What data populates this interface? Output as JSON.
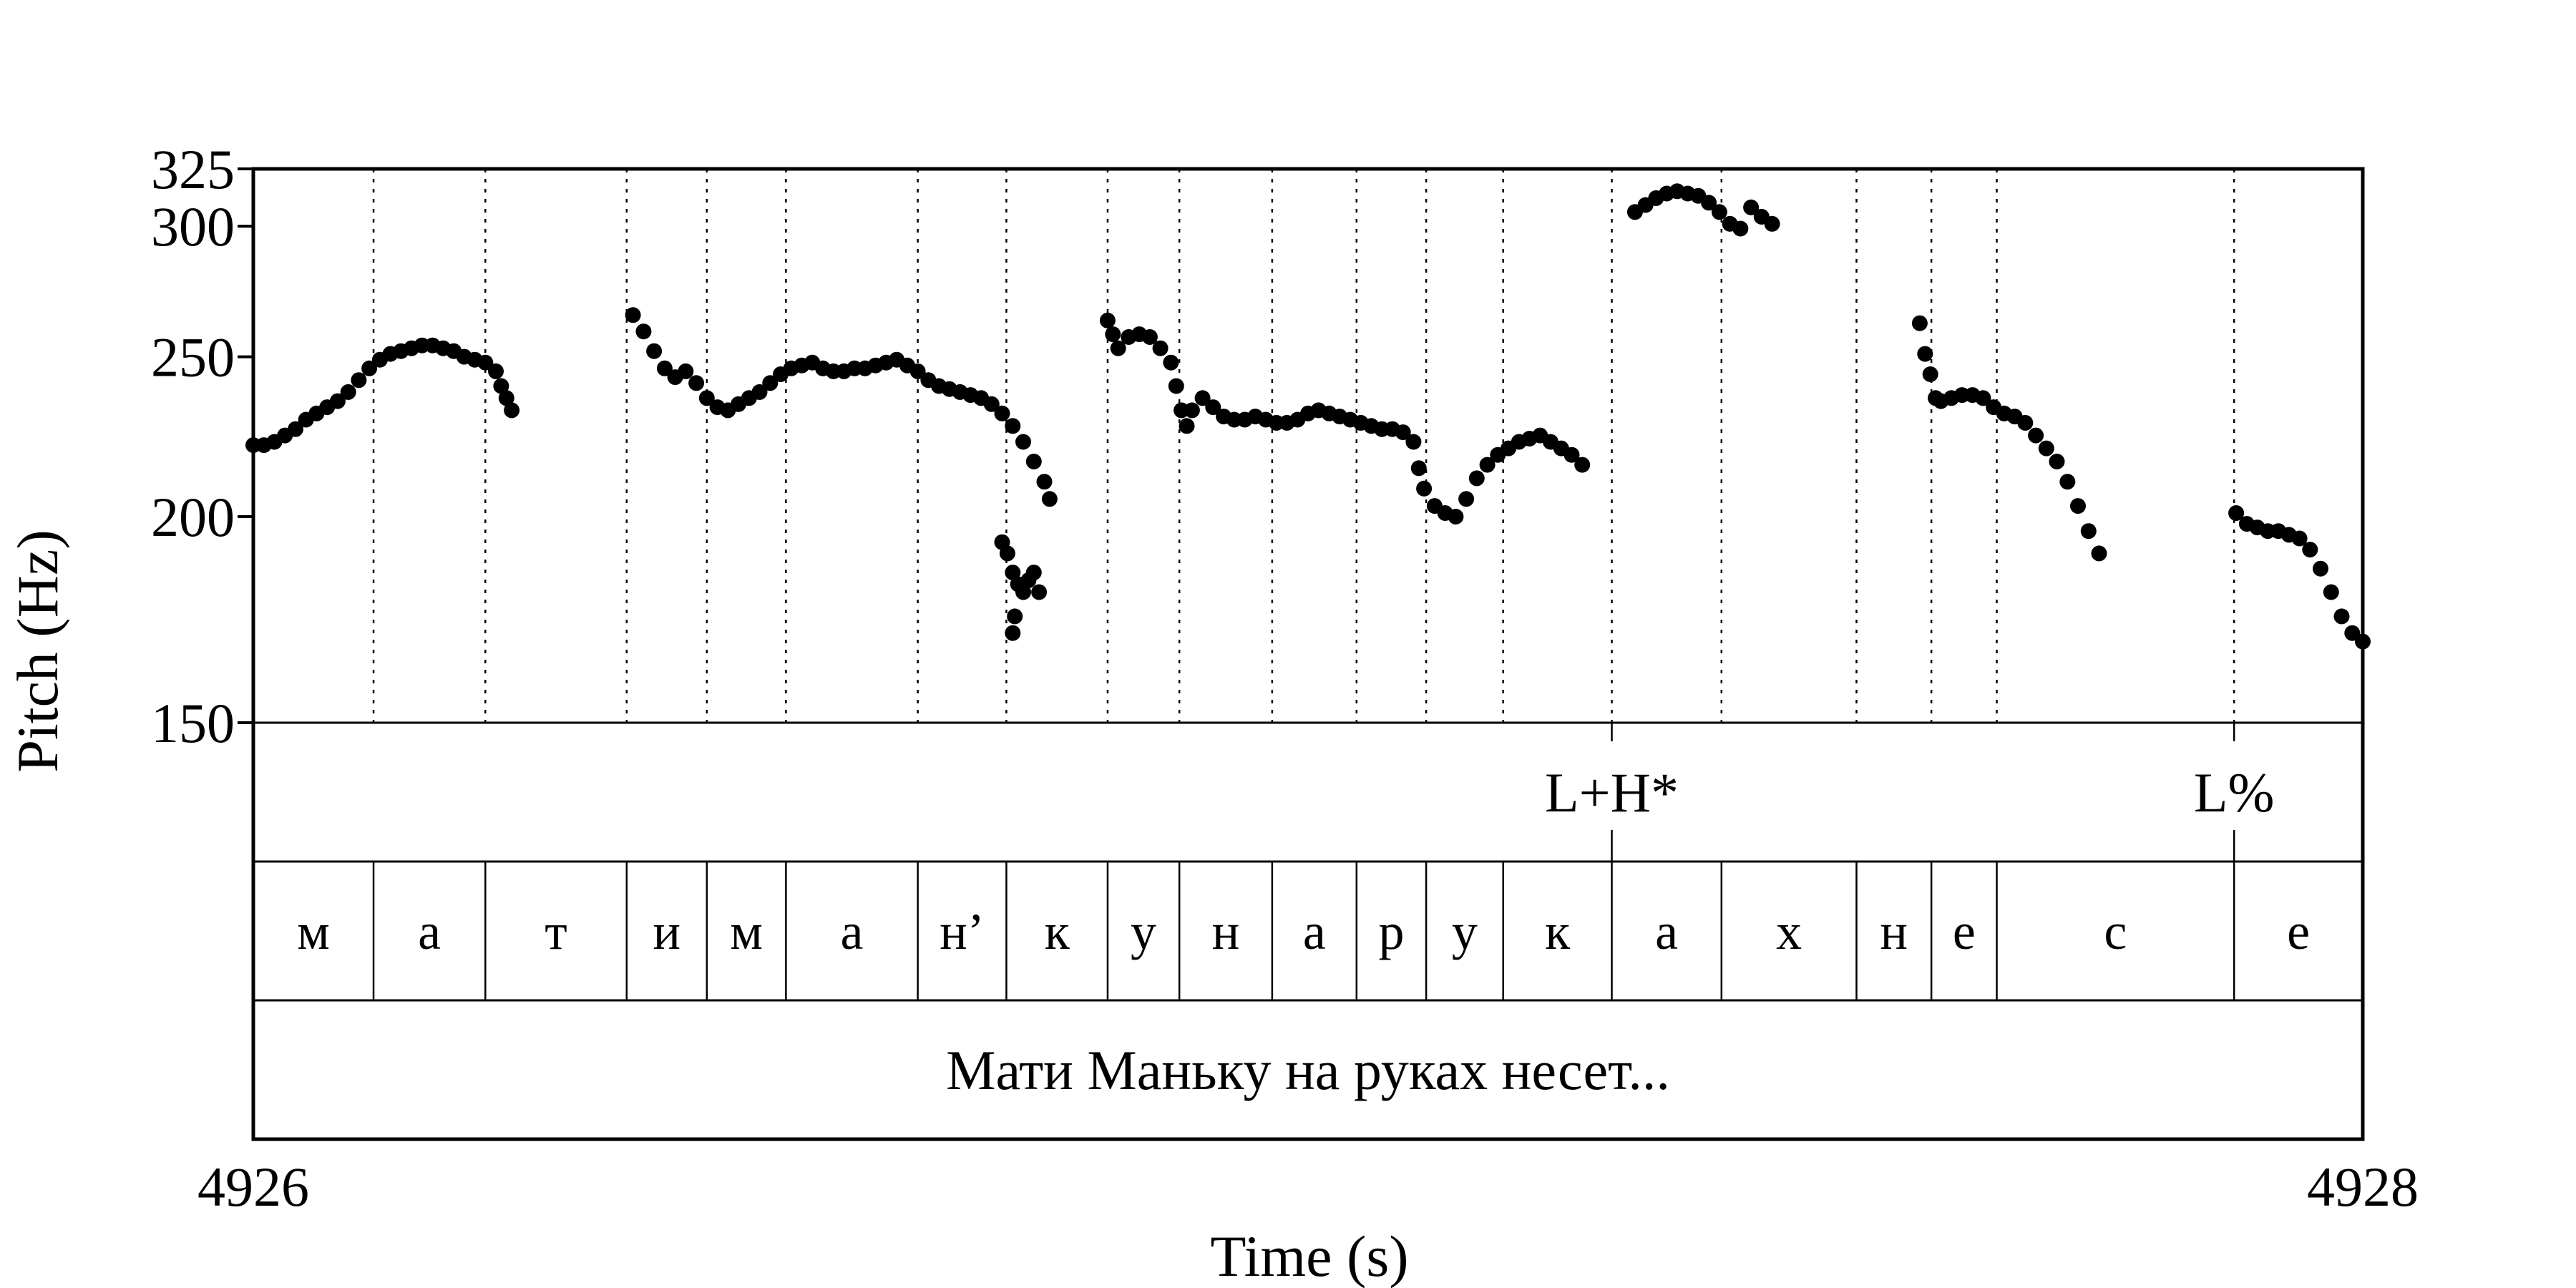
{
  "chart_data": {
    "type": "scatter",
    "xlabel": "Time (s)",
    "ylabel": "Pitch (Hz)",
    "xlim": [
      4926,
      4928
    ],
    "ylim": [
      150,
      325
    ],
    "y_scale": "log",
    "x_ticks": [
      "4926",
      "4928"
    ],
    "y_ticks": [
      150,
      200,
      250,
      300,
      325
    ],
    "grid": false,
    "series": [
      {
        "points": [
          [
            4926.0,
            221
          ],
          [
            4926.01,
            221
          ],
          [
            4926.02,
            222
          ],
          [
            4926.03,
            224
          ],
          [
            4926.04,
            226
          ],
          [
            4926.05,
            229
          ],
          [
            4926.06,
            231
          ],
          [
            4926.07,
            233
          ],
          [
            4926.08,
            235
          ],
          [
            4926.09,
            238
          ],
          [
            4926.1,
            242
          ],
          [
            4926.11,
            246
          ],
          [
            4926.12,
            249
          ],
          [
            4926.13,
            251
          ],
          [
            4926.14,
            252
          ],
          [
            4926.15,
            253
          ],
          [
            4926.16,
            254
          ],
          [
            4926.17,
            254
          ],
          [
            4926.18,
            253
          ],
          [
            4926.19,
            252
          ],
          [
            4926.2,
            250
          ],
          [
            4926.21,
            249
          ],
          [
            4926.22,
            248
          ],
          [
            4926.23,
            245
          ],
          [
            4926.235,
            240
          ],
          [
            4926.24,
            236
          ],
          [
            4926.245,
            232
          ],
          [
            4926.36,
            265
          ],
          [
            4926.37,
            259
          ],
          [
            4926.38,
            252
          ],
          [
            4926.39,
            246
          ],
          [
            4926.4,
            243
          ],
          [
            4926.41,
            245
          ],
          [
            4926.42,
            241
          ],
          [
            4926.43,
            236
          ],
          [
            4926.44,
            233
          ],
          [
            4926.45,
            232
          ],
          [
            4926.46,
            234
          ],
          [
            4926.47,
            236
          ],
          [
            4926.48,
            238
          ],
          [
            4926.49,
            241
          ],
          [
            4926.5,
            244
          ],
          [
            4926.51,
            246
          ],
          [
            4926.52,
            247
          ],
          [
            4926.53,
            248
          ],
          [
            4926.54,
            246
          ],
          [
            4926.55,
            245
          ],
          [
            4926.56,
            245
          ],
          [
            4926.57,
            246
          ],
          [
            4926.58,
            246
          ],
          [
            4926.59,
            247
          ],
          [
            4926.6,
            248
          ],
          [
            4926.61,
            249
          ],
          [
            4926.62,
            247
          ],
          [
            4926.63,
            245
          ],
          [
            4926.64,
            242
          ],
          [
            4926.65,
            240
          ],
          [
            4926.66,
            239
          ],
          [
            4926.67,
            238
          ],
          [
            4926.68,
            237
          ],
          [
            4926.69,
            236
          ],
          [
            4926.7,
            234
          ],
          [
            4926.71,
            231
          ],
          [
            4926.72,
            227
          ],
          [
            4926.73,
            222
          ],
          [
            4926.74,
            216
          ],
          [
            4926.75,
            210
          ],
          [
            4926.755,
            205
          ],
          [
            4926.71,
            193
          ],
          [
            4926.715,
            190
          ],
          [
            4926.72,
            185
          ],
          [
            4926.725,
            182
          ],
          [
            4926.73,
            180
          ],
          [
            4926.735,
            183
          ],
          [
            4926.74,
            185
          ],
          [
            4926.745,
            180
          ],
          [
            4926.72,
            170
          ],
          [
            4926.722,
            174
          ],
          [
            4926.81,
            263
          ],
          [
            4926.815,
            258
          ],
          [
            4926.82,
            253
          ],
          [
            4926.83,
            257
          ],
          [
            4926.84,
            258
          ],
          [
            4926.85,
            257
          ],
          [
            4926.86,
            253
          ],
          [
            4926.87,
            248
          ],
          [
            4926.875,
            240
          ],
          [
            4926.88,
            232
          ],
          [
            4926.885,
            227
          ],
          [
            4926.89,
            232
          ],
          [
            4926.9,
            236
          ],
          [
            4926.91,
            233
          ],
          [
            4926.92,
            230
          ],
          [
            4926.93,
            229
          ],
          [
            4926.94,
            229
          ],
          [
            4926.95,
            230
          ],
          [
            4926.96,
            229
          ],
          [
            4926.97,
            228
          ],
          [
            4926.98,
            228
          ],
          [
            4926.99,
            229
          ],
          [
            4927.0,
            231
          ],
          [
            4927.01,
            232
          ],
          [
            4927.02,
            231
          ],
          [
            4927.03,
            230
          ],
          [
            4927.04,
            229
          ],
          [
            4927.05,
            228
          ],
          [
            4927.06,
            227
          ],
          [
            4927.07,
            226
          ],
          [
            4927.08,
            226
          ],
          [
            4927.09,
            225
          ],
          [
            4927.1,
            222
          ],
          [
            4927.105,
            214
          ],
          [
            4927.11,
            208
          ],
          [
            4927.12,
            203
          ],
          [
            4927.13,
            201
          ],
          [
            4927.14,
            200
          ],
          [
            4927.15,
            205
          ],
          [
            4927.16,
            211
          ],
          [
            4927.17,
            215
          ],
          [
            4927.18,
            218
          ],
          [
            4927.19,
            220
          ],
          [
            4927.2,
            222
          ],
          [
            4927.21,
            223
          ],
          [
            4927.22,
            224
          ],
          [
            4927.23,
            222
          ],
          [
            4927.24,
            220
          ],
          [
            4927.25,
            218
          ],
          [
            4927.26,
            215
          ],
          [
            4927.31,
            306
          ],
          [
            4927.32,
            309
          ],
          [
            4927.33,
            312
          ],
          [
            4927.34,
            314
          ],
          [
            4927.35,
            315
          ],
          [
            4927.36,
            314
          ],
          [
            4927.37,
            313
          ],
          [
            4927.38,
            310
          ],
          [
            4927.39,
            306
          ],
          [
            4927.4,
            301
          ],
          [
            4927.41,
            299
          ],
          [
            4927.42,
            308
          ],
          [
            4927.43,
            304
          ],
          [
            4927.44,
            301
          ],
          [
            4927.58,
            262
          ],
          [
            4927.585,
            251
          ],
          [
            4927.59,
            244
          ],
          [
            4927.595,
            236
          ],
          [
            4927.6,
            235
          ],
          [
            4927.61,
            236
          ],
          [
            4927.62,
            237
          ],
          [
            4927.63,
            237
          ],
          [
            4927.64,
            236
          ],
          [
            4927.65,
            233
          ],
          [
            4927.66,
            231
          ],
          [
            4927.67,
            230
          ],
          [
            4927.68,
            228
          ],
          [
            4927.69,
            224
          ],
          [
            4927.7,
            220
          ],
          [
            4927.71,
            216
          ],
          [
            4927.72,
            210
          ],
          [
            4927.73,
            203
          ],
          [
            4927.74,
            196
          ],
          [
            4927.75,
            190
          ],
          [
            4927.88,
            201
          ],
          [
            4927.89,
            198
          ],
          [
            4927.9,
            197
          ],
          [
            4927.91,
            196
          ],
          [
            4927.92,
            196
          ],
          [
            4927.93,
            195
          ],
          [
            4927.94,
            194
          ],
          [
            4927.95,
            191
          ],
          [
            4927.96,
            186
          ],
          [
            4927.97,
            180
          ],
          [
            4927.98,
            174
          ],
          [
            4927.99,
            170
          ],
          [
            4928.0,
            168
          ]
        ]
      }
    ],
    "tones_tier": {
      "labels": [
        {
          "text": "L+H*",
          "time": 4927.288
        },
        {
          "text": "L%",
          "time": 4927.878
        }
      ]
    },
    "segments_tier": {
      "boundaries": [
        4926.0,
        4926.114,
        4926.22,
        4926.354,
        4926.43,
        4926.505,
        4926.63,
        4926.714,
        4926.81,
        4926.878,
        4926.966,
        4927.046,
        4927.112,
        4927.185,
        4927.288,
        4927.392,
        4927.52,
        4927.591,
        4927.653,
        4927.878,
        4928.0
      ],
      "labels": [
        "м",
        "а",
        "т",
        "и",
        "м",
        "а",
        "н’",
        "к",
        "у",
        "н",
        "а",
        "р",
        "у",
        "к",
        "а",
        "х",
        "н",
        "е",
        "с",
        "е"
      ]
    },
    "sentence_tier": {
      "text": "Мати Маньку на руках несет..."
    }
  }
}
